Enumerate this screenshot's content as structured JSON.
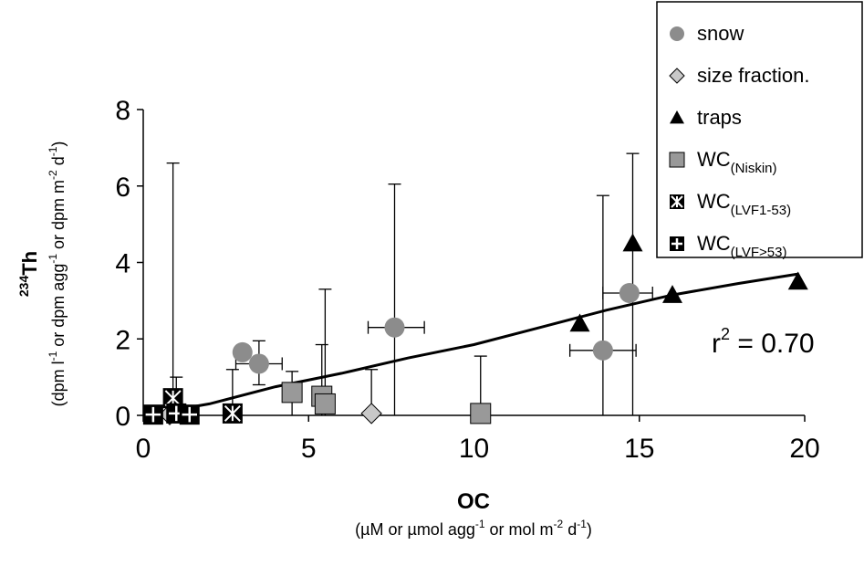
{
  "chart_data": {
    "type": "scatter",
    "xlabel": "OC",
    "xunit": {
      "pre": "(µM or µmol agg",
      "sup1": "-1",
      "mid": " or mol m",
      "sup2": "-2",
      "mid2": " d",
      "sup3": "-1",
      "post": ")"
    },
    "ylabel": {
      "sup": "234",
      "main": "Th"
    },
    "yunit": {
      "p1": "(dpm l",
      "s1": "-1",
      "p2": " or dpm agg",
      "s2": "-1",
      "p3": " or dpm m",
      "s3": "-2",
      "p4": " d",
      "s4": "-1",
      "p5": ")"
    },
    "xlim": [
      0,
      20
    ],
    "ylim": [
      0,
      8
    ],
    "xticks": [
      "0",
      "5",
      "10",
      "15",
      "20"
    ],
    "yticks": [
      "0",
      "2",
      "4",
      "6",
      "8"
    ],
    "xtick_values": [
      0,
      5,
      10,
      15,
      20
    ],
    "ytick_values": [
      0,
      2,
      4,
      6,
      8
    ],
    "grid": false,
    "legend_position": "top-right",
    "annotation": {
      "text_pre": "r",
      "sup": "2",
      "text_post": " = 0.70"
    },
    "series": [
      {
        "name": "snow",
        "marker": "circle",
        "color": "#8c8c8c",
        "points": [
          {
            "x": 3.0,
            "y": 1.65,
            "ylo": 1.65,
            "yhi": 1.65,
            "xlo": 3.0,
            "xhi": 3.0
          },
          {
            "x": 3.5,
            "y": 1.35,
            "ylo": 0.8,
            "yhi": 1.95,
            "xlo": 2.8,
            "xhi": 4.2
          },
          {
            "x": 7.6,
            "y": 2.3,
            "ylo": 0.0,
            "yhi": 6.05,
            "xlo": 6.8,
            "xhi": 8.5
          },
          {
            "x": 13.9,
            "y": 1.7,
            "ylo": 0.0,
            "yhi": 5.75,
            "xlo": 12.9,
            "xhi": 14.9
          },
          {
            "x": 14.7,
            "y": 3.2,
            "ylo": 3.2,
            "yhi": 3.2,
            "xlo": 13.9,
            "xhi": 15.4
          }
        ]
      },
      {
        "name": "size fraction.",
        "marker": "diamond",
        "color": "#c8c8c8",
        "points": [
          {
            "x": 0.8,
            "y": 0.02,
            "ylo": 0.02,
            "yhi": 0.02
          },
          {
            "x": 6.9,
            "y": 0.05,
            "ylo": 0.0,
            "yhi": 1.2
          }
        ]
      },
      {
        "name": "traps",
        "marker": "triangle",
        "color": "#000000",
        "points": [
          {
            "x": 13.2,
            "y": 2.4,
            "ylo": 2.4,
            "yhi": 2.4
          },
          {
            "x": 14.8,
            "y": 4.5,
            "ylo": 0.0,
            "yhi": 6.85
          },
          {
            "x": 16.0,
            "y": 3.15,
            "ylo": 3.15,
            "yhi": 3.15
          },
          {
            "x": 19.8,
            "y": 3.5,
            "ylo": 3.5,
            "yhi": 3.5
          }
        ]
      },
      {
        "name": "WC",
        "sub": "(Niskin)",
        "marker": "square",
        "color": "#999999",
        "points": [
          {
            "x": 4.5,
            "y": 0.6,
            "ylo": 0.0,
            "yhi": 1.15
          },
          {
            "x": 5.4,
            "y": 0.5,
            "ylo": 0.0,
            "yhi": 1.85
          },
          {
            "x": 5.5,
            "y": 0.3,
            "ylo": 0.0,
            "yhi": 3.3
          },
          {
            "x": 10.2,
            "y": 0.05,
            "ylo": 0.0,
            "yhi": 1.55
          }
        ]
      },
      {
        "name": "WC",
        "sub": "(LVF1-53)",
        "marker": "asterisk-square",
        "color": "#000000",
        "points": [
          {
            "x": 0.9,
            "y": 0.45,
            "ylo": 0.0,
            "yhi": 6.6
          },
          {
            "x": 2.7,
            "y": 0.05,
            "ylo": 0.0,
            "yhi": 1.2
          }
        ]
      },
      {
        "name": "WC",
        "sub": "(LVF>53)",
        "marker": "cross-square",
        "color": "#000000",
        "points": [
          {
            "x": 0.3,
            "y": 0.02,
            "ylo": 0.02,
            "yhi": 0.02
          },
          {
            "x": 1.0,
            "y": 0.05,
            "ylo": 0.0,
            "yhi": 1.0
          },
          {
            "x": 1.4,
            "y": 0.02,
            "ylo": 0.02,
            "yhi": 0.02
          }
        ]
      }
    ],
    "fit_line": {
      "x": [
        0,
        2,
        4,
        6,
        8,
        10,
        12,
        14,
        16,
        18,
        19.8
      ],
      "y": [
        0.0,
        0.3,
        0.75,
        1.1,
        1.5,
        1.85,
        2.3,
        2.75,
        3.15,
        3.45,
        3.7
      ]
    }
  }
}
